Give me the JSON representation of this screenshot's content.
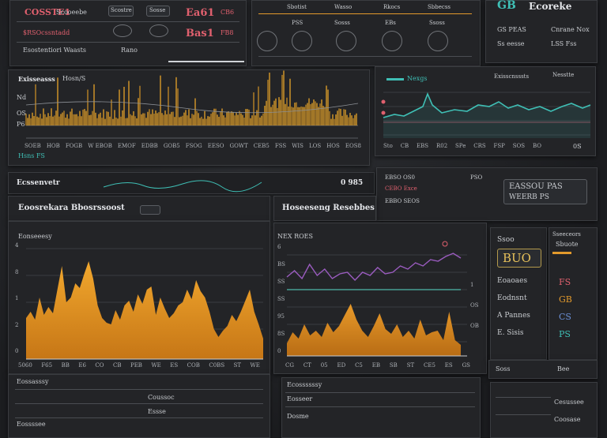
{
  "top_left": {
    "title": "COSSTE1",
    "sub_title": "Scooeebe",
    "r1c2": "Scostre",
    "r1c3": "Sosse",
    "val1": "Ea61",
    "val1_unit": "CB6",
    "row2_label": "$RSOcssntadd",
    "val2": "Bas1",
    "val2_unit": "FB8",
    "row3_label": "Esostentiori Waasts",
    "row3_value": "Rano"
  },
  "top_mid": {
    "items": [
      "Sbotist",
      "Wasso",
      "Rkocs",
      "Sbbecss"
    ],
    "labels": [
      "PSS",
      "Sosss",
      "EBs",
      "Ssoss"
    ]
  },
  "top_right": {
    "brand": "GB",
    "title": "Ecoreke",
    "l1": "GS PEAS",
    "v1": "Cnrane Nox",
    "l2": "Ss eesse",
    "v2": "LSS Fss"
  },
  "waveform": {
    "title": "Exisseasss",
    "subtitle": "Hosn/S",
    "y_labels": [
      "Nd",
      "OS",
      "P6"
    ],
    "x_labels": [
      "SOEB",
      "HOB",
      "FOGB",
      "W EBOB",
      "EMOF",
      "EDBB",
      "GOB5",
      "FSOG",
      "EESO",
      "GOWT",
      "CEB5",
      "FSS",
      "WIS",
      "LOS",
      "HOS",
      "EOS8"
    ],
    "footer": "Hsns FS"
  },
  "teal_panel": {
    "title": "Nexgs",
    "header_right": "Exisscnsssts",
    "sub_right": "Nesstte",
    "x_labels": [
      "Sto",
      "CB",
      "EBS",
      "R02",
      "SPe",
      "CRS",
      "FSP",
      "SOS",
      "BO"
    ],
    "x_right": "0S"
  },
  "strip": {
    "label": "Ecssenvetr",
    "value": "0 985",
    "right_l1": "EBSO OS0",
    "right_l2": "CEBO Exce",
    "right_l3": "EBBO SEOS",
    "right_col": "PSO",
    "card_l1": "EASSOU PAS",
    "card_l2": "WEERB PS"
  },
  "left_chart": {
    "tab": "Eoosrekara Bbosrssoost",
    "subtitle": "Eonseeesy",
    "y_labels": [
      "4",
      "8",
      "1",
      "2",
      "0"
    ],
    "x_labels": [
      "5060",
      "F65",
      "BB",
      "E6",
      "CO",
      "CB",
      "PEB",
      "WE",
      "ES",
      "COB",
      "C0BS",
      "ST",
      "WE"
    ]
  },
  "right_chart": {
    "tab": "Hoseeseng Resebbes",
    "subtitle": "NEX ROES",
    "y_labels": [
      "6",
      "BS",
      "SS",
      "SS",
      "95",
      "8S",
      "0"
    ],
    "x_labels": [
      "CG",
      "CT",
      "05",
      "ED",
      "C5",
      "EB",
      "SB",
      "ST",
      "CE5",
      "ES",
      "GS"
    ],
    "right_ticks": [
      "1",
      "OS",
      "OB"
    ]
  },
  "side_panel": {
    "title": "Ssoo",
    "display_value": "BUO",
    "items": [
      {
        "l": "Eoaoaes",
        "v": "FS"
      },
      {
        "l": "Eodnsnt",
        "v": "GB"
      },
      {
        "l": "A Pannes",
        "v": "CS"
      },
      {
        "l": "E. Sisis",
        "v": "PS"
      }
    ],
    "header1": "Sseeceors",
    "header2": "Sbuote",
    "footer_left": "Soss",
    "footer_right": "Bee"
  },
  "bottom": {
    "left_title": "Eossasssy",
    "left_row": "Eossssee",
    "left_lbl1": "Coussoc",
    "left_lbl2": "Essse",
    "right_title": "Ecossssssy",
    "right_lbl1": "Eosseer",
    "right_lbl2": "Dosme",
    "right_side1": "Cesussee",
    "right_side2": "Coosase"
  },
  "colors": {
    "orange": "#e39a2c",
    "teal": "#3fbfb5",
    "purple": "#9b5cc0",
    "pink": "#e0606e"
  }
}
